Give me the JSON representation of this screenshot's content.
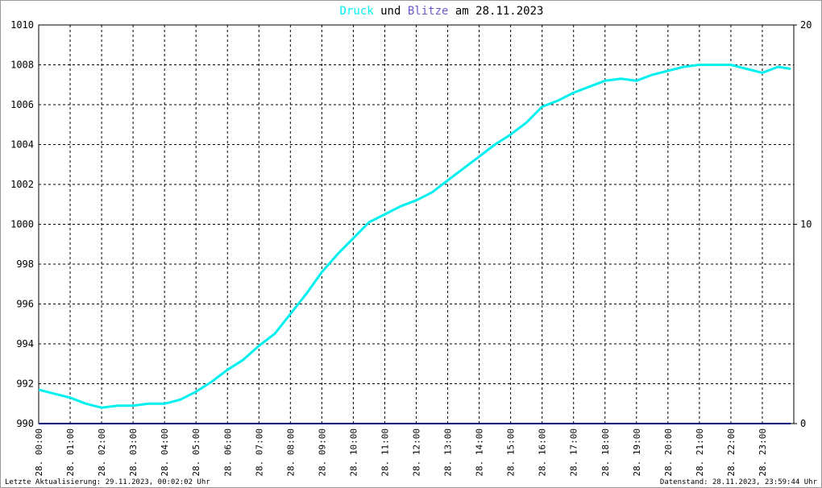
{
  "chart_data": {
    "type": "line",
    "title_connector": "und",
    "title_suffix": "am 28.11.2023",
    "footer_left": "Letzte Aktualisierung: 29.11.2023, 00:02:02 Uhr",
    "footer_right": "Datenstand: 28.11.2023, 23:59:44 Uhr",
    "x": [
      0,
      0.5,
      1,
      1.5,
      2,
      2.5,
      3,
      3.5,
      4,
      4.5,
      5,
      5.5,
      6,
      6.5,
      7,
      7.5,
      8,
      8.5,
      9,
      9.5,
      10,
      10.5,
      11,
      11.5,
      12,
      12.5,
      13,
      13.5,
      14,
      14.5,
      15,
      15.5,
      16,
      16.5,
      17,
      17.5,
      18,
      18.5,
      19,
      19.5,
      20,
      20.5,
      21,
      21.5,
      22,
      22.5,
      23,
      23.5,
      23.9
    ],
    "series": [
      {
        "name": "Druck",
        "color": "#00f0f0",
        "values": [
          991.7,
          991.5,
          991.3,
          991.0,
          990.8,
          990.9,
          990.9,
          991.0,
          991.0,
          991.2,
          991.6,
          992.1,
          992.7,
          993.2,
          993.9,
          994.5,
          995.5,
          996.5,
          997.6,
          998.5,
          999.3,
          1000.1,
          1000.5,
          1000.9,
          1001.2,
          1001.6,
          1002.2,
          1002.8,
          1003.4,
          1004.0,
          1004.5,
          1005.1,
          1005.9,
          1006.2,
          1006.6,
          1006.9,
          1007.2,
          1007.3,
          1007.2,
          1007.5,
          1007.7,
          1007.9,
          1008.0,
          1008.0,
          1008.0,
          1007.8,
          1007.6,
          1007.9,
          1007.8
        ]
      },
      {
        "name": "Blitze",
        "color": "#00007f",
        "axis": "y2",
        "values": [
          0,
          0,
          0,
          0,
          0,
          0,
          0,
          0,
          0,
          0,
          0,
          0,
          0,
          0,
          0,
          0,
          0,
          0,
          0,
          0,
          0,
          0,
          0,
          0,
          0,
          0,
          0,
          0,
          0,
          0,
          0,
          0,
          0,
          0,
          0,
          0,
          0,
          0,
          0,
          0,
          0,
          0,
          0,
          0,
          0,
          0,
          0,
          0,
          0
        ]
      }
    ],
    "title_colors": [
      "#00f0f0",
      "#6a5acd"
    ],
    "xlim": [
      0,
      24
    ],
    "xticks": [
      {
        "value": 0,
        "label": "28. 00:00"
      },
      {
        "value": 1,
        "label": "28. 01:00"
      },
      {
        "value": 2,
        "label": "28. 02:00"
      },
      {
        "value": 3,
        "label": "28. 03:00"
      },
      {
        "value": 4,
        "label": "28. 04:00"
      },
      {
        "value": 5,
        "label": "28. 05:00"
      },
      {
        "value": 6,
        "label": "28. 06:00"
      },
      {
        "value": 7,
        "label": "28. 07:00"
      },
      {
        "value": 8,
        "label": "28. 08:00"
      },
      {
        "value": 9,
        "label": "28. 09:00"
      },
      {
        "value": 10,
        "label": "28. 10:00"
      },
      {
        "value": 11,
        "label": "28. 11:00"
      },
      {
        "value": 12,
        "label": "28. 12:00"
      },
      {
        "value": 13,
        "label": "28. 13:00"
      },
      {
        "value": 14,
        "label": "28. 14:00"
      },
      {
        "value": 15,
        "label": "28. 15:00"
      },
      {
        "value": 16,
        "label": "28. 16:00"
      },
      {
        "value": 17,
        "label": "28. 17:00"
      },
      {
        "value": 18,
        "label": "28. 18:00"
      },
      {
        "value": 19,
        "label": "28. 19:00"
      },
      {
        "value": 20,
        "label": "28. 20:00"
      },
      {
        "value": 21,
        "label": "28. 21:00"
      },
      {
        "value": 22,
        "label": "28. 22:00"
      },
      {
        "value": 23,
        "label": "28. 23:00"
      }
    ],
    "ylim": [
      990,
      1010
    ],
    "yticks": [
      990,
      992,
      994,
      996,
      998,
      1000,
      1002,
      1004,
      1006,
      1008,
      1010
    ],
    "y2lim": [
      0,
      20
    ],
    "y2ticks": [
      0,
      10,
      20
    ],
    "grid": true
  }
}
